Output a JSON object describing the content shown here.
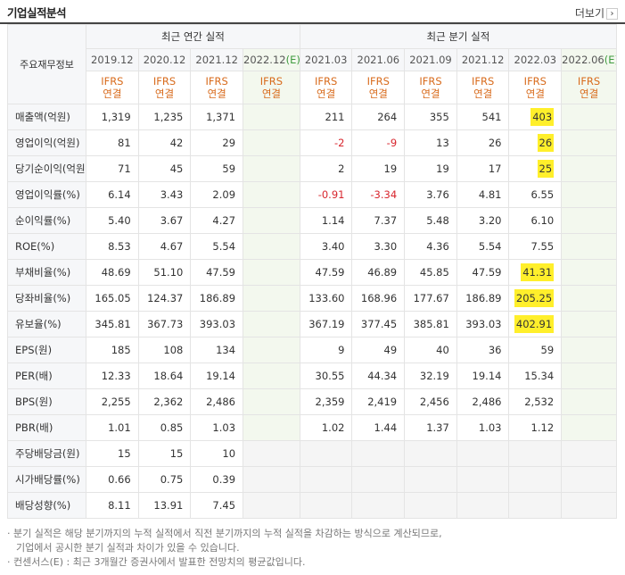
{
  "header": {
    "title": "기업실적분석",
    "more_label": "더보기"
  },
  "table": {
    "corner_label": "주요재무정보",
    "group_annual": "최근 연간 실적",
    "group_quarter": "최근 분기 실적",
    "periods": [
      {
        "label": "2019.12",
        "est": ""
      },
      {
        "label": "2020.12",
        "est": ""
      },
      {
        "label": "2021.12",
        "est": ""
      },
      {
        "label": "2022.12",
        "est": "(E)"
      },
      {
        "label": "2021.03",
        "est": ""
      },
      {
        "label": "2021.06",
        "est": ""
      },
      {
        "label": "2021.09",
        "est": ""
      },
      {
        "label": "2021.12",
        "est": ""
      },
      {
        "label": "2022.03",
        "est": ""
      },
      {
        "label": "2022.06",
        "est": "(E)"
      }
    ],
    "ifrs_label": "IFRS",
    "consol_label": "연결",
    "rows": [
      {
        "label": "매출액(억원)",
        "values": [
          "1,319",
          "1,235",
          "1,371",
          "",
          "211",
          "264",
          "355",
          "541",
          "403",
          ""
        ]
      },
      {
        "label": "영업이익(억원)",
        "values": [
          "81",
          "42",
          "29",
          "",
          "-2",
          "-9",
          "13",
          "26",
          "26",
          ""
        ]
      },
      {
        "label": "당기순이익(억원)",
        "values": [
          "71",
          "45",
          "59",
          "",
          "2",
          "19",
          "19",
          "17",
          "25",
          ""
        ]
      },
      {
        "label": "영업이익률(%)",
        "values": [
          "6.14",
          "3.43",
          "2.09",
          "",
          "-0.91",
          "-3.34",
          "3.76",
          "4.81",
          "6.55",
          ""
        ]
      },
      {
        "label": "순이익률(%)",
        "values": [
          "5.40",
          "3.67",
          "4.27",
          "",
          "1.14",
          "7.37",
          "5.48",
          "3.20",
          "6.10",
          ""
        ]
      },
      {
        "label": "ROE(%)",
        "values": [
          "8.53",
          "4.67",
          "5.54",
          "",
          "3.40",
          "3.30",
          "4.36",
          "5.54",
          "7.55",
          ""
        ]
      },
      {
        "label": "부채비율(%)",
        "values": [
          "48.69",
          "51.10",
          "47.59",
          "",
          "47.59",
          "46.89",
          "45.85",
          "47.59",
          "41.31",
          ""
        ]
      },
      {
        "label": "당좌비율(%)",
        "values": [
          "165.05",
          "124.37",
          "186.89",
          "",
          "133.60",
          "168.96",
          "177.67",
          "186.89",
          "205.25",
          ""
        ]
      },
      {
        "label": "유보율(%)",
        "values": [
          "345.81",
          "367.73",
          "393.03",
          "",
          "367.19",
          "377.45",
          "385.81",
          "393.03",
          "402.91",
          ""
        ]
      },
      {
        "label": "EPS(원)",
        "values": [
          "185",
          "108",
          "134",
          "",
          "9",
          "49",
          "40",
          "36",
          "59",
          ""
        ]
      },
      {
        "label": "PER(배)",
        "values": [
          "12.33",
          "18.64",
          "19.14",
          "",
          "30.55",
          "44.34",
          "32.19",
          "19.14",
          "15.34",
          ""
        ]
      },
      {
        "label": "BPS(원)",
        "values": [
          "2,255",
          "2,362",
          "2,486",
          "",
          "2,359",
          "2,419",
          "2,456",
          "2,486",
          "2,532",
          ""
        ]
      },
      {
        "label": "PBR(배)",
        "values": [
          "1.01",
          "0.85",
          "1.03",
          "",
          "1.02",
          "1.44",
          "1.37",
          "1.03",
          "1.12",
          ""
        ]
      },
      {
        "label": "주당배당금(원)",
        "values": [
          "15",
          "15",
          "10",
          "",
          "",
          "",
          "",
          "",
          "",
          ""
        ]
      },
      {
        "label": "시가배당률(%)",
        "values": [
          "0.66",
          "0.75",
          "0.39",
          "",
          "",
          "",
          "",
          "",
          "",
          ""
        ]
      },
      {
        "label": "배당성향(%)",
        "values": [
          "8.11",
          "13.91",
          "7.45",
          "",
          "",
          "",
          "",
          "",
          "",
          ""
        ]
      }
    ]
  },
  "footer": {
    "line1": "· 분기 실적은 해당 분기까지의 누적 실적에서 직전 분기까지의 누적 실적을 차감하는 방식으로 계산되므로,",
    "line2": "기업에서 공시한 분기 실적과 차이가 있을 수 있습니다.",
    "line3": "· 컨센서스(E) : 최근 3개월간 증권사에서 발표한 전망치의 평균값입니다."
  },
  "colors": {
    "ifrs": "#d86b1c",
    "negative": "#d8262e",
    "estimate": "#3f9b3f",
    "highlight": "#ffef2b",
    "projection_bg": "#f3f8ee"
  }
}
